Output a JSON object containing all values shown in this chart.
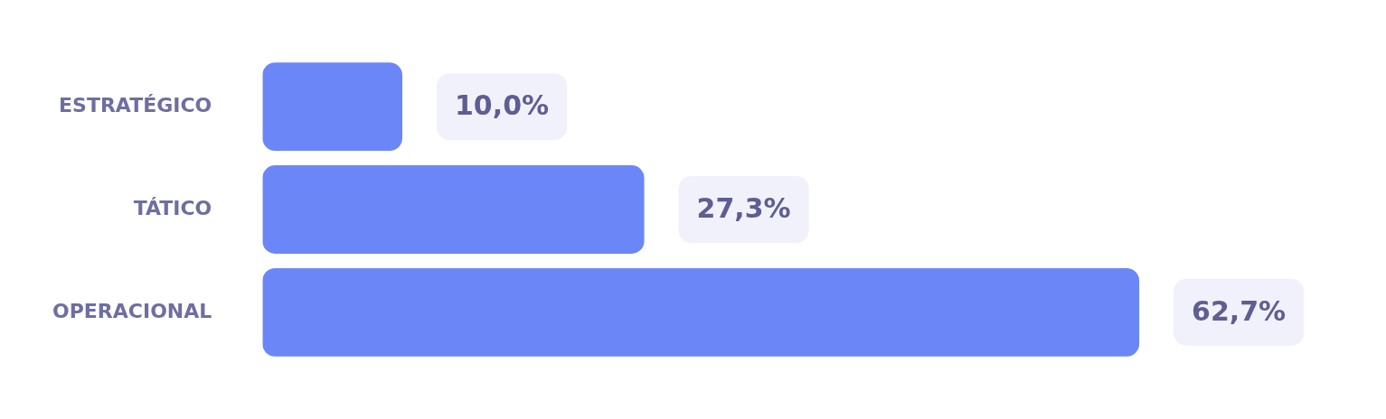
{
  "chart_data": {
    "type": "bar",
    "orientation": "horizontal",
    "categories": [
      "ESTRATÉGICO",
      "TÁTICO",
      "OPERACIONAL"
    ],
    "values": [
      10.0,
      27.3,
      62.7
    ],
    "color": "#6b86f7",
    "value_labels": [
      "10,0%",
      "27,3%",
      "62,7%"
    ],
    "legend": false,
    "tick_labels": "y"
  }
}
